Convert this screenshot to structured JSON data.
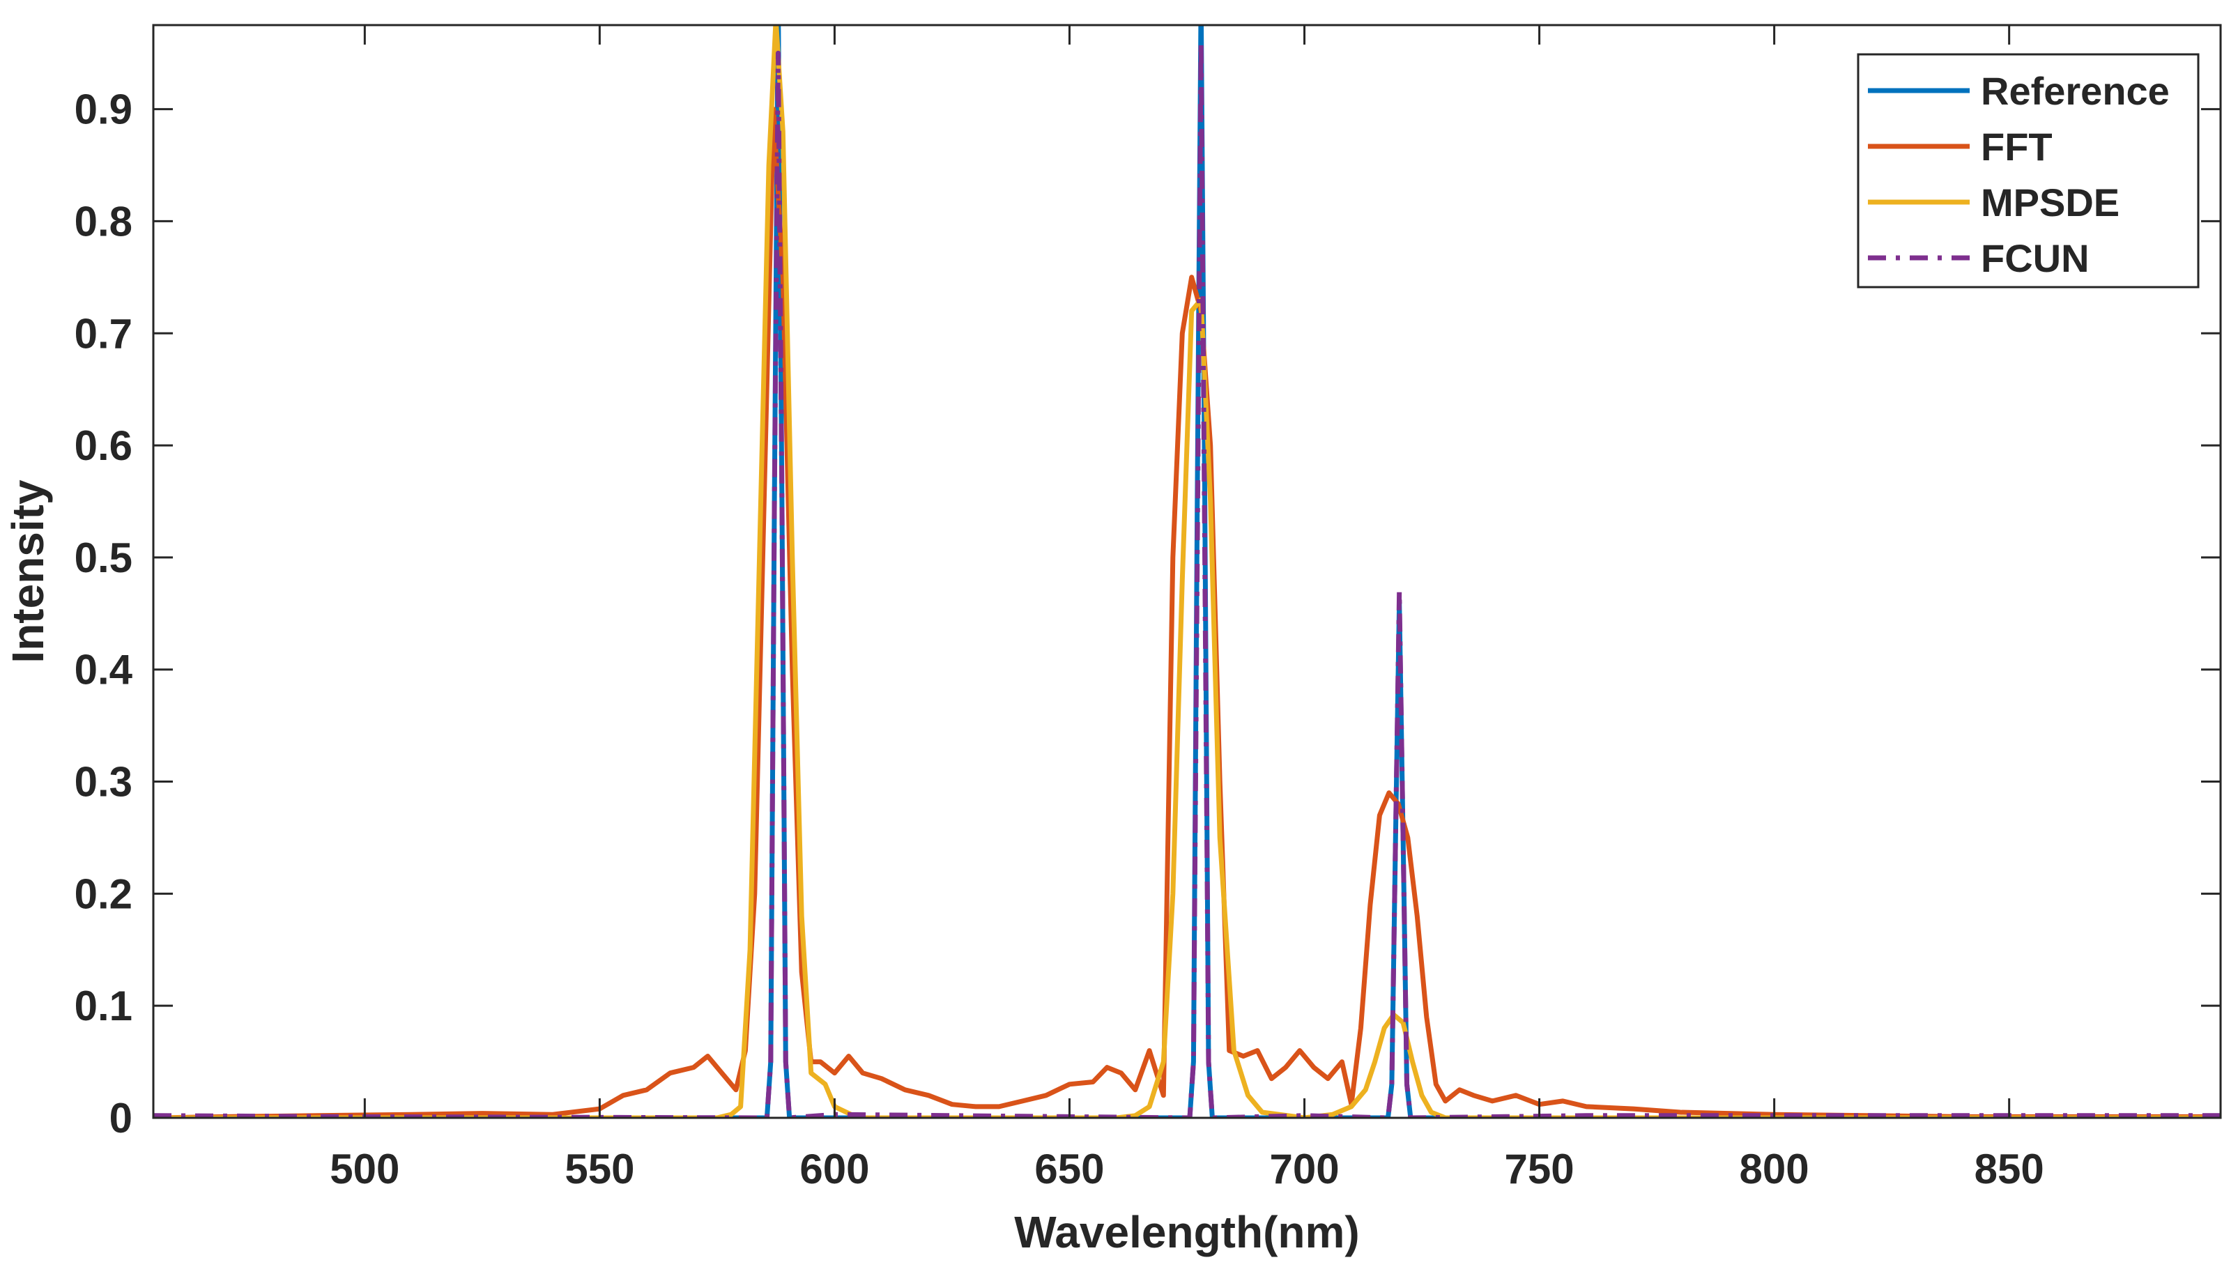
{
  "chart_data": {
    "type": "line",
    "xlabel": "Wavelength(nm)",
    "ylabel": "Intensity",
    "xlim": [
      455,
      895
    ],
    "ylim": [
      0,
      0.975
    ],
    "xticks": [
      500,
      550,
      600,
      650,
      700,
      750,
      800,
      850
    ],
    "yticks": [
      0,
      0.1,
      0.2,
      0.3,
      0.4,
      0.5,
      0.6,
      0.7,
      0.8,
      0.9
    ],
    "ytick_labels": [
      "0",
      "0.1",
      "0.2",
      "0.3",
      "0.4",
      "0.5",
      "0.6",
      "0.7",
      "0.8",
      "0.9"
    ],
    "grid": false,
    "legend_position": "top-right",
    "series": [
      {
        "name": "Reference",
        "color": "#0072BD",
        "style": "solid",
        "x": [
          455,
          585.6,
          586.4,
          587.2,
          588.0,
          588.8,
          589.6,
          590.4,
          675.6,
          676.4,
          677.2,
          678.0,
          678.8,
          679.6,
          680.4,
          717.8,
          718.6,
          719.4,
          720.2,
          721.0,
          721.8,
          722.6,
          895
        ],
        "y": [
          0,
          0,
          0.05,
          0.55,
          1.0,
          0.55,
          0.05,
          0,
          0,
          0.05,
          0.55,
          1.0,
          0.55,
          0.05,
          0,
          0,
          0.03,
          0.25,
          0.46,
          0.25,
          0.03,
          0,
          0
        ]
      },
      {
        "name": "FFT",
        "color": "#D95319",
        "style": "solid",
        "x": [
          455,
          470,
          490,
          510,
          525,
          540,
          550,
          555,
          560,
          565,
          570,
          573,
          576,
          579,
          581,
          583,
          585,
          587,
          589,
          591,
          593,
          595,
          597,
          600,
          603,
          606,
          610,
          615,
          620,
          625,
          630,
          635,
          640,
          645,
          650,
          655,
          658,
          661,
          664,
          667,
          670,
          672,
          674,
          676,
          678,
          680,
          682,
          684,
          687,
          690,
          693,
          696,
          699,
          702,
          705,
          708,
          710,
          712,
          714,
          716,
          718,
          720,
          722,
          724,
          726,
          728,
          730,
          733,
          736,
          740,
          745,
          750,
          755,
          760,
          770,
          780,
          800,
          820,
          840,
          860,
          880,
          895
        ],
        "y": [
          0,
          0.001,
          0.002,
          0.003,
          0.004,
          0.003,
          0.008,
          0.02,
          0.025,
          0.04,
          0.045,
          0.055,
          0.04,
          0.025,
          0.06,
          0.2,
          0.55,
          0.9,
          0.75,
          0.4,
          0.13,
          0.05,
          0.05,
          0.04,
          0.055,
          0.04,
          0.035,
          0.025,
          0.02,
          0.012,
          0.01,
          0.01,
          0.015,
          0.02,
          0.03,
          0.032,
          0.045,
          0.04,
          0.025,
          0.06,
          0.02,
          0.5,
          0.7,
          0.75,
          0.72,
          0.6,
          0.3,
          0.06,
          0.055,
          0.06,
          0.035,
          0.045,
          0.06,
          0.045,
          0.035,
          0.05,
          0.012,
          0.08,
          0.19,
          0.27,
          0.29,
          0.28,
          0.25,
          0.18,
          0.09,
          0.03,
          0.015,
          0.025,
          0.02,
          0.015,
          0.02,
          0.012,
          0.015,
          0.01,
          0.008,
          0.005,
          0.003,
          0.002,
          0.001,
          0.001,
          0.001,
          0.001
        ]
      },
      {
        "name": "MPSDE",
        "color": "#EDB120",
        "style": "solid",
        "x": [
          455,
          575,
          578,
          580,
          582,
          584,
          586,
          587.5,
          589,
          591,
          593,
          595,
          598,
          600,
          605,
          660,
          664,
          667,
          670,
          672,
          674,
          676,
          678,
          680,
          682,
          685,
          688,
          691,
          700,
          706,
          710,
          713,
          715,
          717,
          719,
          721,
          723,
          725,
          727,
          730,
          760,
          800,
          895
        ],
        "y": [
          0,
          0,
          0.003,
          0.01,
          0.15,
          0.5,
          0.85,
          0.98,
          0.88,
          0.5,
          0.18,
          0.04,
          0.03,
          0.01,
          0,
          0,
          0.002,
          0.01,
          0.05,
          0.2,
          0.48,
          0.72,
          0.73,
          0.55,
          0.25,
          0.06,
          0.02,
          0.005,
          0,
          0.003,
          0.01,
          0.025,
          0.05,
          0.08,
          0.092,
          0.085,
          0.05,
          0.02,
          0.005,
          0,
          0,
          0,
          0
        ]
      },
      {
        "name": "FCUN",
        "color": "#7E2F8E",
        "style": "dashdot",
        "x": [
          455,
          500,
          585.6,
          586.4,
          587.2,
          588.0,
          588.8,
          589.6,
          590.4,
          600,
          675.6,
          676.4,
          677.2,
          678.0,
          678.8,
          679.6,
          680.4,
          700,
          717.8,
          718.6,
          719.4,
          720.2,
          721.0,
          721.8,
          722.6,
          760,
          820,
          895
        ],
        "y": [
          0.002,
          0.001,
          0,
          0.05,
          0.55,
          0.95,
          0.55,
          0.05,
          0,
          0.003,
          0,
          0.05,
          0.5,
          0.96,
          0.5,
          0.05,
          0,
          0.002,
          0,
          0.03,
          0.25,
          0.47,
          0.25,
          0.03,
          0,
          0.002,
          0.002,
          0.002
        ]
      }
    ]
  }
}
